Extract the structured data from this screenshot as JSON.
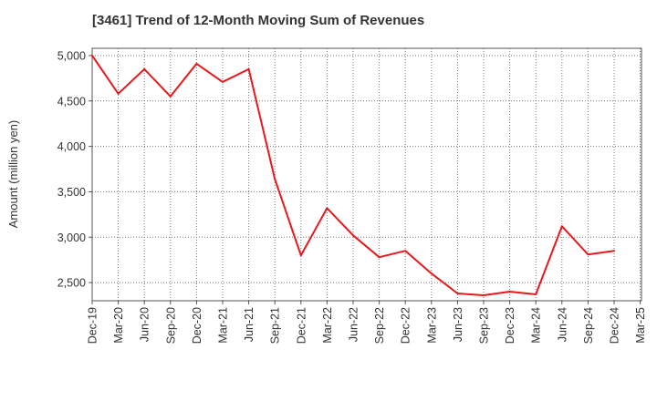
{
  "chart_data": {
    "type": "line",
    "title": "[3461]  Trend of 12-Month Moving Sum of Revenues",
    "xlabel": "",
    "ylabel": "Amount (million yen)",
    "ylim": [
      2300,
      5080
    ],
    "yticks": [
      2500,
      3000,
      3500,
      4000,
      4500,
      5000
    ],
    "ytick_labels": [
      "2,500",
      "3,000",
      "3,500",
      "4,000",
      "4,500",
      "5,000"
    ],
    "x_ticks": [
      "Dec-19",
      "Mar-20",
      "Jun-20",
      "Sep-20",
      "Dec-20",
      "Mar-21",
      "Jun-21",
      "Sep-21",
      "Dec-21",
      "Mar-22",
      "Jun-22",
      "Sep-22",
      "Dec-22",
      "Mar-23",
      "Jun-23",
      "Sep-23",
      "Dec-23",
      "Mar-24",
      "Jun-24",
      "Sep-24",
      "Dec-24",
      "Mar-25"
    ],
    "grid": true,
    "series": [
      {
        "color": "#e8191c",
        "x": [
          "Dec-19",
          "Mar-20",
          "Jun-20",
          "Sep-20",
          "Dec-20",
          "Mar-21",
          "Jun-21",
          "Sep-21",
          "Dec-21",
          "Mar-22",
          "Jun-22",
          "Sep-22",
          "Dec-22",
          "Mar-23",
          "Jun-23",
          "Sep-23",
          "Dec-23",
          "Mar-24",
          "Jun-24",
          "Sep-24",
          "Dec-24"
        ],
        "values": [
          5000,
          4580,
          4850,
          4550,
          4910,
          4710,
          4850,
          3640,
          2800,
          3320,
          3020,
          2780,
          2850,
          2600,
          2380,
          2360,
          2400,
          2370,
          3120,
          2810,
          2850
        ]
      }
    ]
  }
}
